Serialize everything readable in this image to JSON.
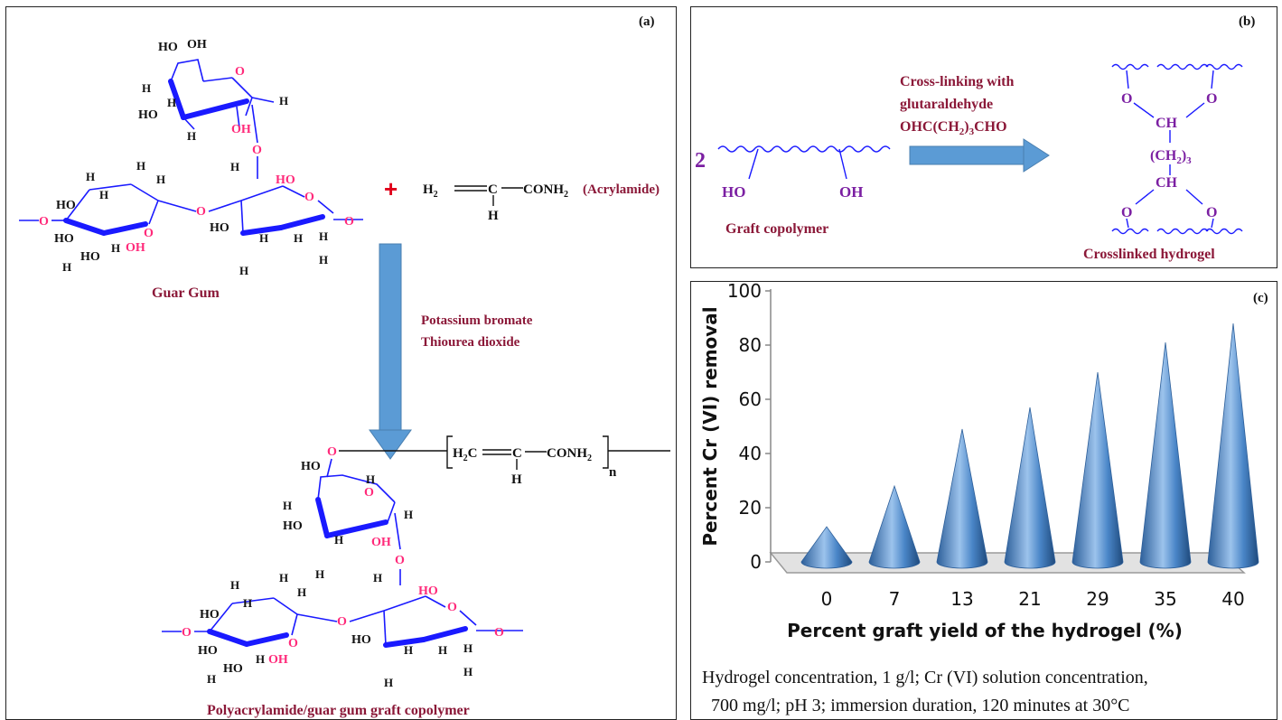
{
  "panel_a": {
    "label": "(a)",
    "plus": "+",
    "monomer_left": "H",
    "monomer_left_sub": "2",
    "monomer_c": "C",
    "monomer_h": "H",
    "monomer_right": "CONH",
    "monomer_right_sub": "2",
    "monomer_name": "(Acrylamide)",
    "guar_caption": "Guar Gum",
    "reagent_1": "Potassium bromate",
    "reagent_2": "Thiourea dioxide",
    "subscript_n": "n",
    "product_caption": "Polyacrylamide/guar gum graft copolymer"
  },
  "panel_b": {
    "label": "(b)",
    "multiplier": "2",
    "left_ho": "HO",
    "left_oh": "OH",
    "left_caption": "Graft copolymer",
    "reagent_1": "Cross-linking with",
    "reagent_2": "glutaraldehyde",
    "reagent_3": "OHC(CH",
    "reagent_3_sub1": "2",
    "reagent_3_end": ")",
    "reagent_3_sub2": "3",
    "reagent_3_tail": "CHO",
    "ch_top": "CH",
    "ch2_group": "(CH",
    "ch2_sub": "2",
    "ch2_close": ")",
    "ch2_count": "3",
    "ch_bottom": "CH",
    "o_atom": "O",
    "right_caption": "Crosslinked hydrogel"
  },
  "panel_c": {
    "label": "(c)",
    "note_line1": "Hydrogel concentration, 1 g/l; Cr (VI) solution concentration,",
    "note_line2": "700 mg/l; pH 3; immersion duration, 120 minutes at 30°C"
  },
  "colors": {
    "ring_bond": "#1a1aff",
    "oxygen": "#ff2a7a",
    "caption": "#8b1838",
    "purple": "#7b1fa2",
    "arrow": "#5b9bd5",
    "cone": "#4a86c8"
  },
  "chart_data": {
    "type": "bar",
    "style": "3d-cone",
    "xlabel": "Percent graft yield of the hydrogel (%)",
    "ylabel": "Percent Cr (VI) removal",
    "categories": [
      "0",
      "7",
      "13",
      "21",
      "29",
      "35",
      "40"
    ],
    "values": [
      13,
      28,
      49,
      57,
      70,
      81,
      88
    ],
    "ylim": [
      0,
      100
    ],
    "yticks": [
      "0",
      "20",
      "40",
      "60",
      "80",
      "100"
    ],
    "grid": false,
    "legend": "none"
  }
}
